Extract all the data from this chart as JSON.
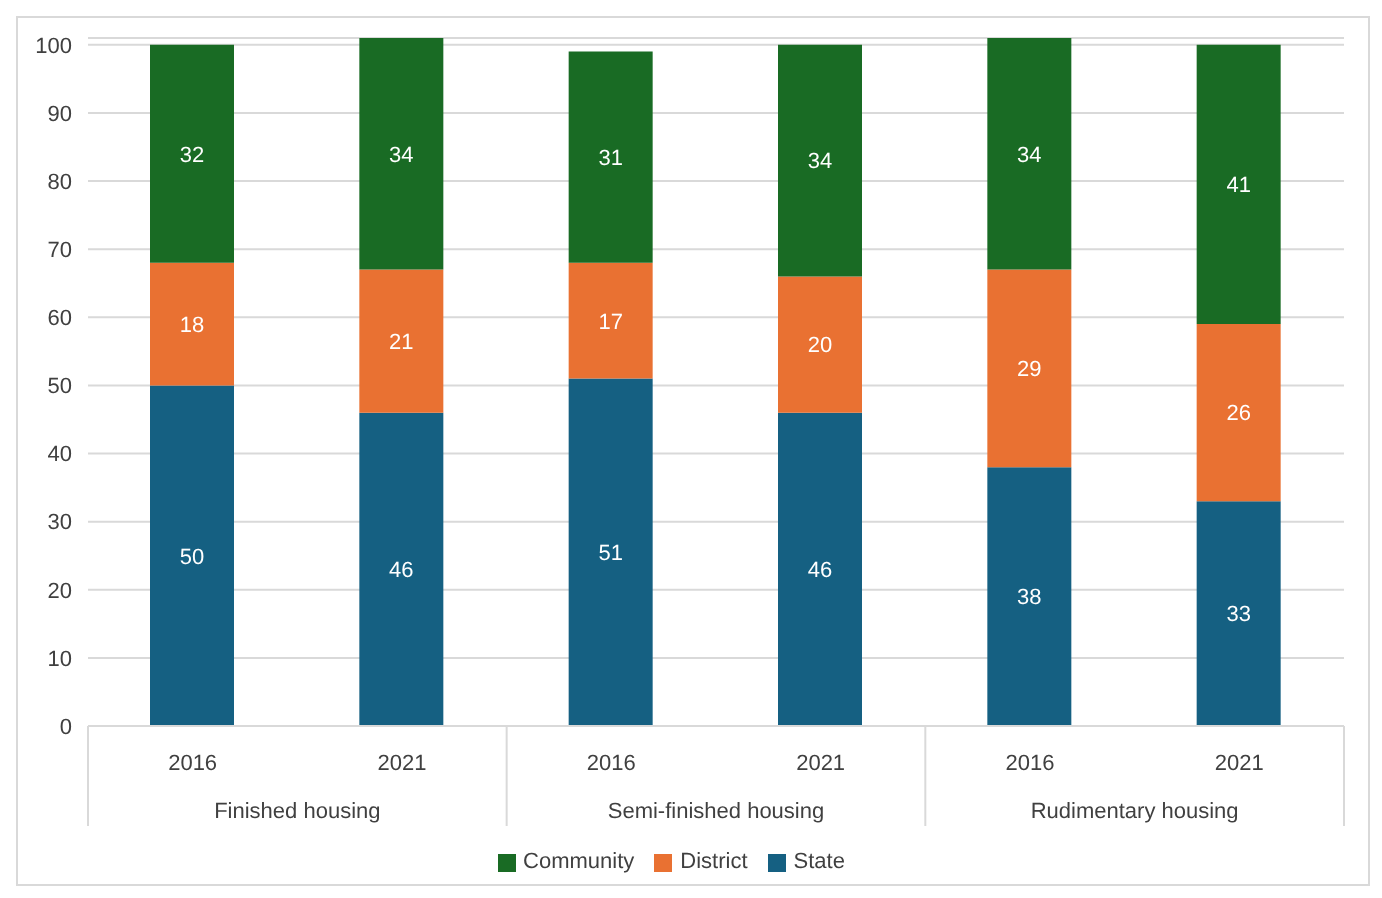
{
  "chart_data": {
    "type": "bar",
    "stacked": true,
    "categories": [
      "2016",
      "2021",
      "2016",
      "2021",
      "2016",
      "2021"
    ],
    "series": [
      {
        "name": "State",
        "color": "#156082",
        "values": [
          50,
          46,
          51,
          46,
          38,
          33
        ]
      },
      {
        "name": "District",
        "color": "#e97132",
        "values": [
          18,
          21,
          17,
          20,
          29,
          26
        ]
      },
      {
        "name": "Community",
        "color": "#196b24",
        "values": [
          32,
          34,
          31,
          34,
          34,
          41
        ]
      }
    ],
    "annotations": [
      "Finished housing",
      "Semi-finished housing",
      "Rudimentary housing"
    ],
    "ylim": [
      0,
      101
    ],
    "yticks": [
      0,
      10,
      20,
      30,
      40,
      50,
      60,
      70,
      80,
      90,
      100
    ],
    "grid": "y",
    "legend": "bottom",
    "data_labels": true
  }
}
